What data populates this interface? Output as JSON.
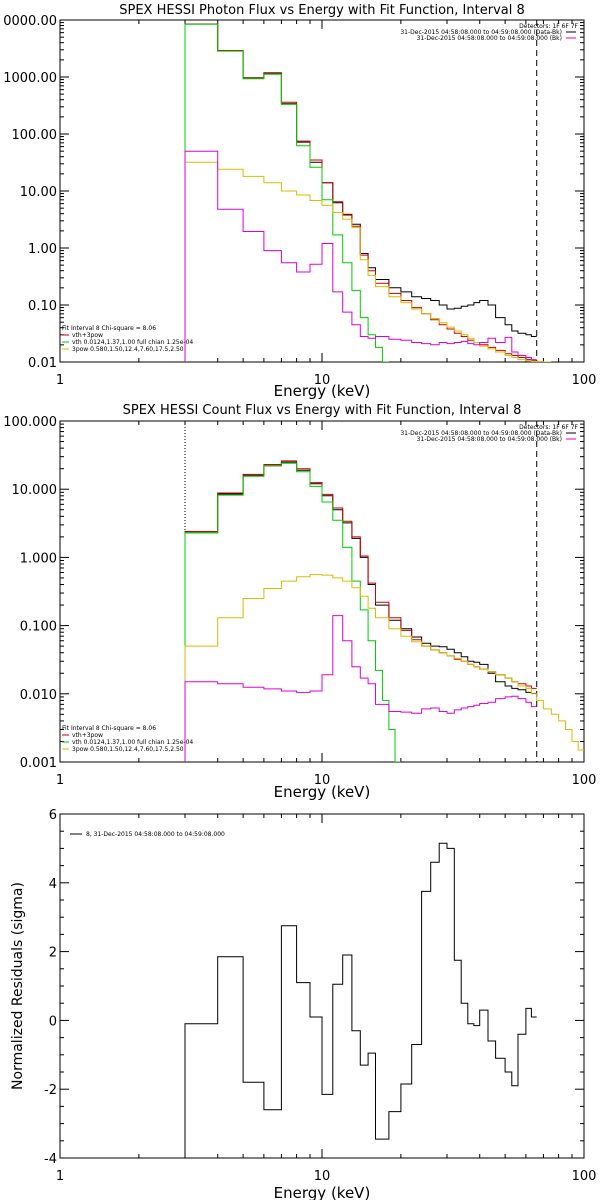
{
  "chart_data": [
    {
      "type": "line",
      "title": "SPEX HESSI Photon Flux vs Energy with Fit Function, Interval 8",
      "xlabel": "Energy (keV)",
      "ylabel": "",
      "xscale": "log",
      "yscale": "log",
      "xlim": [
        1,
        100
      ],
      "ylim": [
        0.01,
        10000
      ],
      "xticks": [
        "1",
        "10",
        "100"
      ],
      "yticks": [
        "0000.00",
        "1000.00",
        "100.00",
        "10.00",
        "1.00",
        "0.10",
        "0.01"
      ],
      "ytick_values": [
        10000,
        1000,
        100,
        10,
        1,
        0.1,
        0.01
      ],
      "vlines": [
        {
          "x": 3,
          "style": "dotted"
        },
        {
          "x": 66,
          "style": "dashed"
        }
      ],
      "legend_top": [
        "Detectors: 1F 6F 7F",
        "31-Dec-2015 04:58:08.000 to 04:59:08.000 (Data-Bk)",
        "31-Dec-2015 04:58:08.000 to 04:59:08.000 (Bk)"
      ],
      "legend_bottom": [
        "Fit Interval 8    Chi-square = 8.06",
        "vth+3pow",
        "vth 0.0124,1.37,1.00  full chian 1.25e-04",
        "3pow 0.580,1.50,12.4,7.60,17.5,2.50"
      ],
      "series": [
        {
          "name": "31-Dec-2015 04:58:08.000 to 04:59:08.000 (Data-Bk)",
          "color": "#000000",
          "edges": [
            3,
            4,
            5,
            6,
            7,
            8,
            9,
            10,
            11,
            12,
            13,
            14,
            15,
            16,
            18,
            20,
            22,
            24,
            26,
            28,
            30,
            32,
            34,
            36,
            38,
            40,
            43,
            46,
            50,
            53,
            56,
            60,
            63,
            66
          ],
          "values": [
            8500,
            2900,
            970,
            1180,
            340,
            72,
            32,
            14,
            6.2,
            3.8,
            2.6,
            0.8,
            0.45,
            0.28,
            0.2,
            0.17,
            0.14,
            0.13,
            0.12,
            0.1,
            0.085,
            0.088,
            0.095,
            0.1,
            0.11,
            0.12,
            0.1,
            0.06,
            0.045,
            0.035,
            0.032,
            0.03,
            0.028
          ]
        },
        {
          "name": "vth+3pow",
          "color": "#cc0000",
          "edges": [
            3,
            4,
            5,
            6,
            7,
            8,
            9,
            10,
            11,
            12,
            13,
            14,
            15,
            16,
            18,
            20,
            22,
            24,
            26,
            28,
            30,
            32,
            34,
            36,
            38,
            40,
            43,
            46,
            50,
            53,
            56,
            60,
            63,
            66,
            70
          ],
          "values": [
            8500,
            2900,
            960,
            1150,
            360,
            75,
            35,
            14,
            6.5,
            3.9,
            2.4,
            0.75,
            0.4,
            0.24,
            0.16,
            0.12,
            0.09,
            0.07,
            0.055,
            0.045,
            0.038,
            0.032,
            0.028,
            0.024,
            0.022,
            0.02,
            0.018,
            0.016,
            0.014,
            0.013,
            0.012,
            0.011,
            0.0105,
            0.0101
          ]
        },
        {
          "name": "vth 0.0124,1.37,1.00  full chian 1.25e-04",
          "color": "#00cc00",
          "edges": [
            3,
            4,
            5,
            6,
            7,
            8,
            9,
            10,
            11,
            12,
            13,
            14,
            15,
            16,
            17,
            18
          ],
          "values": [
            8400,
            2850,
            930,
            1120,
            330,
            62,
            26,
            7.0,
            1.7,
            0.55,
            0.18,
            0.06,
            0.03,
            0.018,
            0.01
          ]
        },
        {
          "name": "3pow 0.580,1.50,12.4,7.60,17.5,2.50",
          "color": "#ddbb00",
          "edges": [
            3,
            4,
            5,
            6,
            7,
            8,
            9,
            10,
            11,
            12,
            13,
            14,
            15,
            16,
            18,
            20,
            22,
            24,
            26,
            28,
            30,
            32,
            34,
            36,
            38,
            40,
            43,
            46,
            50,
            53,
            56,
            60,
            63,
            66,
            70,
            75
          ],
          "values": [
            32,
            24,
            18,
            14,
            10,
            8.5,
            6.8,
            5.6,
            4.2,
            3.2,
            2.3,
            0.62,
            0.33,
            0.21,
            0.14,
            0.11,
            0.085,
            0.07,
            0.058,
            0.049,
            0.041,
            0.035,
            0.03,
            0.026,
            0.022,
            0.019,
            0.017,
            0.015,
            0.013,
            0.012,
            0.011,
            0.0105,
            0.0102,
            0.0101,
            0.01
          ]
        },
        {
          "name": "31-Dec-2015 04:58:08.000 to 04:59:08.000 (Bk)",
          "color": "#dd00dd",
          "edges": [
            3,
            4,
            5,
            6,
            7,
            8,
            9,
            10,
            11,
            12,
            13,
            14,
            15,
            16,
            18,
            20,
            22,
            24,
            26,
            28,
            30,
            32,
            34,
            36,
            38,
            40,
            43,
            46,
            50,
            53,
            56,
            60,
            63,
            66
          ],
          "values": [
            50,
            4.8,
            1.95,
            0.9,
            0.55,
            0.38,
            0.52,
            1.2,
            0.17,
            0.075,
            0.045,
            0.028,
            0.026,
            0.028,
            0.025,
            0.024,
            0.022,
            0.021,
            0.02,
            0.022,
            0.021,
            0.022,
            0.023,
            0.021,
            0.02,
            0.022,
            0.026,
            0.022,
            0.027,
            0.015,
            0.013,
            0.012,
            0.011
          ]
        }
      ]
    },
    {
      "type": "line",
      "title": "SPEX HESSI Count Flux vs Energy with Fit Function, Interval 8",
      "xlabel": "Energy (keV)",
      "ylabel": "",
      "xscale": "log",
      "yscale": "log",
      "xlim": [
        1,
        100
      ],
      "ylim": [
        0.001,
        100
      ],
      "xticks": [
        "1",
        "10",
        "100"
      ],
      "yticks": [
        "100.000",
        "10.000",
        "1.000",
        "0.100",
        "0.010",
        "0.001"
      ],
      "ytick_values": [
        100,
        10,
        1,
        0.1,
        0.01,
        0.001
      ],
      "vlines": [
        {
          "x": 3,
          "style": "dotted"
        },
        {
          "x": 66,
          "style": "dashed"
        }
      ],
      "legend_top": [
        "Detectors: 1F 6F 7F",
        "31-Dec-2015 04:58:08.000 to 04:59:08.000 (Data-Bk)",
        "31-Dec-2015 04:58:08.000 to 04:59:08.000 (Bk)"
      ],
      "legend_bottom": [
        "Fit Interval 8    Chi-square = 8.06",
        "vth+3pow",
        "vth 0.0124,1.37,1.00  full chian 1.25e-04",
        "3pow 0.580,1.50,12.4,7.60,17.5,2.50"
      ],
      "series": [
        {
          "name": "31-Dec-2015 04:58:08.000 to 04:59:08.000 (Data-Bk)",
          "color": "#000000",
          "edges": [
            3,
            4,
            5,
            6,
            7,
            8,
            9,
            10,
            11,
            12,
            13,
            14,
            15,
            16,
            18,
            20,
            22,
            24,
            26,
            28,
            30,
            32,
            34,
            36,
            38,
            40,
            43,
            46,
            50,
            53,
            56,
            60,
            63,
            66
          ],
          "values": [
            2.3,
            8.5,
            16,
            22,
            25,
            19,
            12,
            8,
            5,
            3.2,
            1.9,
            1.0,
            0.4,
            0.2,
            0.12,
            0.09,
            0.068,
            0.055,
            0.05,
            0.049,
            0.045,
            0.04,
            0.035,
            0.03,
            0.029,
            0.027,
            0.02,
            0.015,
            0.013,
            0.012,
            0.0115,
            0.0105,
            0.0101
          ]
        },
        {
          "name": "vth+3pow",
          "color": "#cc0000",
          "edges": [
            3,
            4,
            5,
            6,
            7,
            8,
            9,
            10,
            11,
            12,
            13,
            14,
            15,
            16,
            18,
            20,
            22,
            24,
            26,
            28,
            30,
            32,
            34,
            36,
            38,
            40,
            43,
            46,
            50,
            53,
            56,
            60,
            63,
            66
          ],
          "values": [
            2.4,
            8.8,
            16.5,
            23,
            26,
            20,
            12.5,
            8.4,
            5.3,
            3.4,
            2.0,
            1.05,
            0.42,
            0.22,
            0.13,
            0.085,
            0.062,
            0.05,
            0.044,
            0.04,
            0.036,
            0.032,
            0.03,
            0.027,
            0.025,
            0.023,
            0.021,
            0.019,
            0.017,
            0.015,
            0.014,
            0.013,
            0.012
          ]
        },
        {
          "name": "vth 0.0124,1.37,1.00  full chian 1.25e-04",
          "color": "#00cc00",
          "edges": [
            3,
            4,
            5,
            6,
            7,
            8,
            9,
            10,
            11,
            12,
            13,
            14,
            15,
            16,
            17,
            18,
            19,
            20
          ],
          "values": [
            2.3,
            8.2,
            15.5,
            22,
            24,
            18,
            11,
            6.5,
            3.5,
            1.4,
            0.45,
            0.17,
            0.06,
            0.022,
            0.008,
            0.003,
            0.001
          ]
        },
        {
          "name": "3pow 0.580,1.50,12.4,7.60,17.5,2.50",
          "color": "#ddbb00",
          "edges": [
            3,
            4,
            5,
            6,
            7,
            8,
            9,
            10,
            11,
            12,
            13,
            14,
            15,
            16,
            18,
            20,
            22,
            24,
            26,
            28,
            30,
            32,
            34,
            36,
            38,
            40,
            43,
            46,
            50,
            53,
            56,
            60,
            63,
            66,
            70,
            75,
            80,
            85,
            90,
            95,
            100
          ],
          "values": [
            0.05,
            0.13,
            0.25,
            0.35,
            0.45,
            0.52,
            0.56,
            0.55,
            0.5,
            0.45,
            0.36,
            0.27,
            0.18,
            0.13,
            0.09,
            0.07,
            0.058,
            0.05,
            0.044,
            0.04,
            0.036,
            0.033,
            0.03,
            0.027,
            0.025,
            0.023,
            0.021,
            0.019,
            0.017,
            0.015,
            0.013,
            0.012,
            0.01,
            0.008,
            0.006,
            0.005,
            0.004,
            0.003,
            0.002,
            0.0015
          ]
        },
        {
          "name": "31-Dec-2015 04:58:08.000 to 04:59:08.000 (Bk)",
          "color": "#dd00dd",
          "edges": [
            3,
            4,
            5,
            6,
            7,
            8,
            9,
            10,
            11,
            12,
            13,
            14,
            15,
            16,
            18,
            20,
            22,
            24,
            26,
            28,
            30,
            32,
            34,
            36,
            38,
            40,
            43,
            46,
            50,
            53,
            56,
            60,
            63,
            66
          ],
          "values": [
            0.015,
            0.014,
            0.0125,
            0.0118,
            0.011,
            0.0105,
            0.011,
            0.019,
            0.14,
            0.06,
            0.025,
            0.017,
            0.014,
            0.007,
            0.0055,
            0.0054,
            0.0052,
            0.006,
            0.0062,
            0.0055,
            0.0052,
            0.0058,
            0.0062,
            0.0065,
            0.0068,
            0.0072,
            0.0075,
            0.0085,
            0.009,
            0.0092,
            0.0085,
            0.0075,
            0.0065
          ]
        }
      ]
    },
    {
      "type": "line",
      "title": "",
      "xlabel": "Energy (keV)",
      "ylabel": "Normalized Residuals (sigma)",
      "xscale": "log",
      "yscale": "linear",
      "xlim": [
        1,
        100
      ],
      "ylim": [
        -4,
        6
      ],
      "xticks": [
        "1",
        "10",
        "100"
      ],
      "yticks": [
        "6",
        "4",
        "2",
        "0",
        "-2",
        "-4"
      ],
      "ytick_values": [
        6,
        4,
        2,
        0,
        -2,
        -4
      ],
      "legend_top": [
        "8, 31-Dec-2015 04:58:08.000 to 04:59:08.000"
      ],
      "series": [
        {
          "name": "8, 31-Dec-2015 04:58:08.000 to 04:59:08.000",
          "color": "#000000",
          "edges": [
            3,
            4,
            5,
            6,
            7,
            8,
            9,
            10,
            11,
            12,
            13,
            14,
            15,
            16,
            18,
            20,
            22,
            24,
            26,
            28,
            30,
            32,
            34,
            36,
            38,
            40,
            43,
            46,
            50,
            53,
            56,
            60,
            63,
            66
          ],
          "values": [
            -0.1,
            1.85,
            -1.8,
            -2.6,
            2.75,
            1.1,
            0.1,
            -2.15,
            1.05,
            1.9,
            -0.3,
            -1.3,
            -0.95,
            -3.45,
            -2.65,
            -1.85,
            -0.7,
            3.75,
            4.6,
            5.15,
            5.0,
            1.75,
            0.5,
            -0.1,
            -0.15,
            0.3,
            -0.6,
            -1.1,
            -1.5,
            -1.9,
            -0.4,
            0.35,
            0.1
          ]
        }
      ]
    }
  ]
}
